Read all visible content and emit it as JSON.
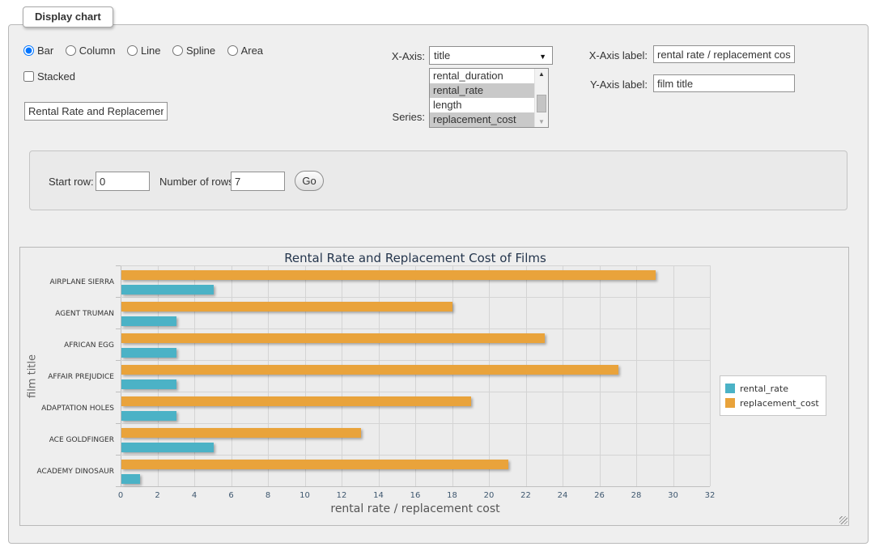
{
  "panel": {
    "legend": "Display chart"
  },
  "chart_type_options": [
    {
      "label": "Bar",
      "selected": true
    },
    {
      "label": "Column",
      "selected": false
    },
    {
      "label": "Line",
      "selected": false
    },
    {
      "label": "Spline",
      "selected": false
    },
    {
      "label": "Area",
      "selected": false
    }
  ],
  "stacked": {
    "label": "Stacked",
    "checked": false
  },
  "title_input": {
    "value": "Rental Rate and Replacement Cost of Films"
  },
  "x_axis": {
    "label": "X-Axis:",
    "selected_value": "title"
  },
  "series_select": {
    "label": "Series:",
    "options": [
      {
        "label": "rental_duration",
        "selected": false
      },
      {
        "label": "rental_rate",
        "selected": true
      },
      {
        "label": "length",
        "selected": false
      },
      {
        "label": "replacement_cost",
        "selected": true
      }
    ]
  },
  "x_axis_label": {
    "label": "X-Axis label:",
    "value": "rental rate / replacement cost"
  },
  "y_axis_label": {
    "label": "Y-Axis label:",
    "value": "film title"
  },
  "rows_controls": {
    "start_row_label": "Start row:",
    "start_row_value": "0",
    "num_rows_label": "Number of rows:",
    "num_rows_value": "7",
    "go_label": "Go"
  },
  "chart_data": {
    "type": "bar",
    "title": "Rental Rate and Replacement Cost of Films",
    "xlabel": "rental rate / replacement cost",
    "ylabel": "film title",
    "categories": [
      "AIRPLANE SIERRA",
      "AGENT TRUMAN",
      "AFRICAN EGG",
      "AFFAIR PREJUDICE",
      "ADAPTATION HOLES",
      "ACE GOLDFINGER",
      "ACADEMY DINOSAUR"
    ],
    "series": [
      {
        "name": "rental_rate",
        "color": "#4bb2c6",
        "values": [
          4.99,
          2.99,
          2.99,
          2.99,
          2.99,
          4.99,
          0.99
        ]
      },
      {
        "name": "replacement_cost",
        "color": "#e9a33b",
        "values": [
          28.99,
          17.99,
          22.99,
          26.99,
          18.99,
          12.99,
          20.99
        ]
      }
    ],
    "xlim": [
      0,
      32
    ],
    "xtick_step": 2,
    "grid": true,
    "legend_position": "right",
    "plot_background": "#ececec"
  }
}
